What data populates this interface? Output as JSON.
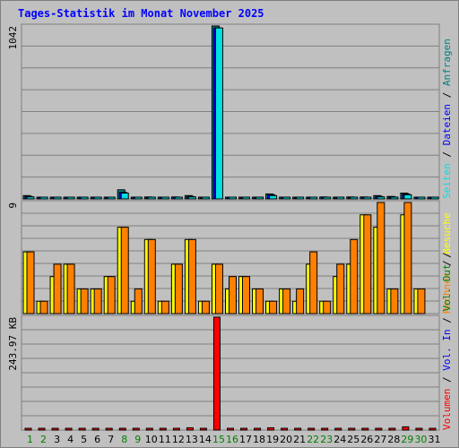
{
  "title": "Tages-Statistik im Monat November 2025",
  "days": [
    "1",
    "2",
    "3",
    "4",
    "5",
    "6",
    "7",
    "8",
    "9",
    "10",
    "11",
    "12",
    "13",
    "14",
    "15",
    "16",
    "17",
    "18",
    "19",
    "20",
    "21",
    "22",
    "23",
    "24",
    "25",
    "26",
    "27",
    "28",
    "29",
    "30",
    "31"
  ],
  "weekend_days": [
    "1",
    "2",
    "8",
    "9",
    "15",
    "16",
    "22",
    "23",
    "29",
    "30"
  ],
  "colors": {
    "background": "#c0c0c0",
    "title": "#0000ff",
    "weekday_label": "#000000",
    "weekend_label": "#008000",
    "anfragen": "#008080",
    "dateien": "#0000ff",
    "seiten": "#00e0e0",
    "besuche": "#ffff00",
    "rechner": "#ff8000",
    "volumen": "#ff0000",
    "vol_in": "#0000ff",
    "vol_out": "#008000",
    "grid": "#808080"
  },
  "chart_data": [
    {
      "type": "bar",
      "panel": "requests",
      "y_max_label": "1042",
      "ylim": [
        0,
        1042
      ],
      "categories": [
        "1",
        "2",
        "3",
        "4",
        "5",
        "6",
        "7",
        "8",
        "9",
        "10",
        "11",
        "12",
        "13",
        "14",
        "15",
        "16",
        "17",
        "18",
        "19",
        "20",
        "21",
        "22",
        "23",
        "24",
        "25",
        "26",
        "27",
        "28",
        "29",
        "30",
        "31"
      ],
      "series": [
        {
          "name": "Anfragen",
          "values": [
            20,
            5,
            5,
            5,
            5,
            5,
            5,
            55,
            5,
            12,
            5,
            12,
            20,
            5,
            1042,
            5,
            5,
            5,
            30,
            5,
            5,
            5,
            12,
            5,
            12,
            12,
            20,
            15,
            35,
            5,
            5
          ]
        },
        {
          "name": "Dateien",
          "values": [
            15,
            3,
            3,
            3,
            3,
            3,
            3,
            40,
            3,
            10,
            3,
            10,
            15,
            3,
            1030,
            3,
            3,
            3,
            25,
            3,
            3,
            3,
            10,
            3,
            10,
            10,
            15,
            12,
            30,
            3,
            3
          ]
        },
        {
          "name": "Seiten",
          "values": [
            12,
            2,
            2,
            2,
            2,
            2,
            2,
            35,
            2,
            8,
            2,
            8,
            12,
            2,
            1030,
            2,
            2,
            2,
            20,
            2,
            2,
            2,
            8,
            2,
            8,
            8,
            12,
            10,
            25,
            2,
            2
          ]
        }
      ]
    },
    {
      "type": "bar",
      "panel": "visits",
      "y_max_label": "9",
      "ylim": [
        0,
        9
      ],
      "categories": [
        "1",
        "2",
        "3",
        "4",
        "5",
        "6",
        "7",
        "8",
        "9",
        "10",
        "11",
        "12",
        "13",
        "14",
        "15",
        "16",
        "17",
        "18",
        "19",
        "20",
        "21",
        "22",
        "23",
        "24",
        "25",
        "26",
        "27",
        "28",
        "29",
        "30",
        "31"
      ],
      "series": [
        {
          "name": "Besuche",
          "values": [
            5,
            1,
            3,
            4,
            2,
            2,
            3,
            7,
            1,
            6,
            1,
            4,
            6,
            1,
            4,
            2,
            3,
            2,
            1,
            2,
            1,
            4,
            1,
            3,
            4,
            8,
            7,
            2,
            8,
            2,
            0
          ]
        },
        {
          "name": "Rechner",
          "values": [
            5,
            1,
            4,
            4,
            2,
            2,
            3,
            7,
            2,
            6,
            1,
            4,
            6,
            1,
            4,
            3,
            3,
            2,
            1,
            2,
            2,
            5,
            1,
            4,
            6,
            8,
            9,
            2,
            9,
            2,
            0
          ]
        }
      ]
    },
    {
      "type": "bar",
      "panel": "volume",
      "y_max_label": "243.97 KB",
      "ylim": [
        0,
        243.97
      ],
      "unit": "KB",
      "categories": [
        "1",
        "2",
        "3",
        "4",
        "5",
        "6",
        "7",
        "8",
        "9",
        "10",
        "11",
        "12",
        "13",
        "14",
        "15",
        "16",
        "17",
        "18",
        "19",
        "20",
        "21",
        "22",
        "23",
        "24",
        "25",
        "26",
        "27",
        "28",
        "29",
        "30",
        "31"
      ],
      "series": [
        {
          "name": "Volumen",
          "values": [
            2,
            2,
            2,
            2,
            2,
            2,
            2,
            2,
            2,
            2,
            2,
            2,
            5,
            2,
            243.97,
            2,
            2,
            2,
            5,
            2,
            2,
            2,
            2,
            2,
            2,
            2,
            2,
            2,
            7,
            2,
            2
          ]
        }
      ]
    }
  ],
  "right_legend_top": [
    {
      "text": "Seiten",
      "color_key": "seiten"
    },
    {
      "text": " / ",
      "color_key": "weekday_label"
    },
    {
      "text": "Dateien",
      "color_key": "dateien"
    },
    {
      "text": " / ",
      "color_key": "weekday_label"
    },
    {
      "text": "Anfragen",
      "color_key": "anfragen"
    }
  ],
  "right_legend_mid": [
    {
      "text": "Rechner",
      "color_key": "rechner"
    },
    {
      "text": " / ",
      "color_key": "weekday_label"
    },
    {
      "text": "Besuche",
      "color_key": "besuche"
    }
  ],
  "right_legend_bottom": [
    {
      "text": "Volumen",
      "color_key": "volumen"
    },
    {
      "text": " / ",
      "color_key": "weekday_label"
    },
    {
      "text": "Vol. In",
      "color_key": "vol_in"
    },
    {
      "text": " / ",
      "color_key": "weekday_label"
    },
    {
      "text": "Vol. Out",
      "color_key": "vol_out"
    },
    {
      "text": " / ",
      "color_key": "weekday_label"
    }
  ]
}
